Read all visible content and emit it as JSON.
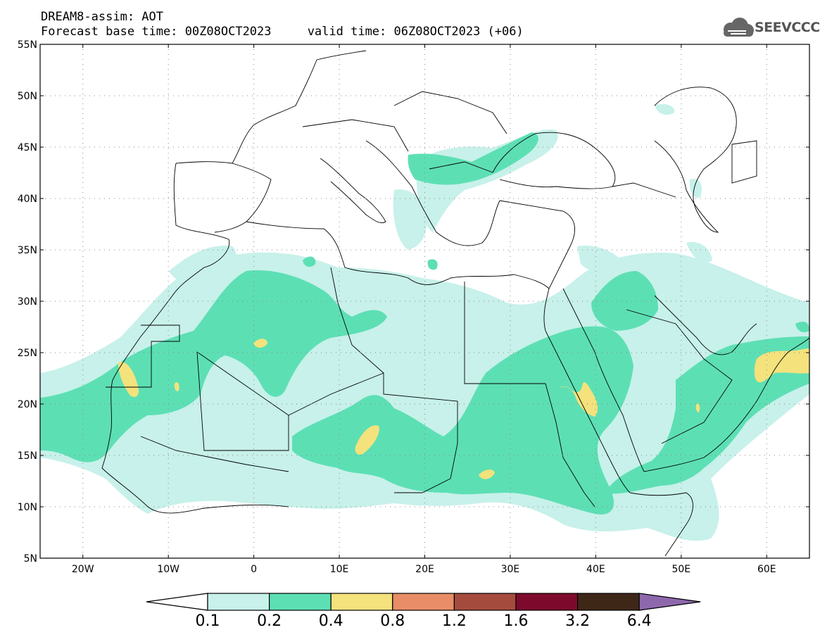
{
  "header": {
    "line1": "DREAM8-assim: AOT",
    "line2": "Forecast base time: 00Z08OCT2023     valid time: 06Z08OCT2023 (+06)"
  },
  "logo": {
    "text": "SEEVCCC",
    "icon": "cloud-icon"
  },
  "map": {
    "lon_range": [
      -25,
      65
    ],
    "lat_range": [
      5,
      55
    ],
    "lat_ticks": [
      {
        "value": 55,
        "label": "55N"
      },
      {
        "value": 50,
        "label": "50N"
      },
      {
        "value": 45,
        "label": "45N"
      },
      {
        "value": 40,
        "label": "40N"
      },
      {
        "value": 35,
        "label": "35N"
      },
      {
        "value": 30,
        "label": "30N"
      },
      {
        "value": 25,
        "label": "25N"
      },
      {
        "value": 20,
        "label": "20N"
      },
      {
        "value": 15,
        "label": "15N"
      },
      {
        "value": 10,
        "label": "10N"
      },
      {
        "value": 5,
        "label": "5N"
      }
    ],
    "lon_ticks": [
      {
        "value": -20,
        "label": "20W"
      },
      {
        "value": -10,
        "label": "10W"
      },
      {
        "value": 0,
        "label": "0"
      },
      {
        "value": 10,
        "label": "10E"
      },
      {
        "value": 20,
        "label": "20E"
      },
      {
        "value": 30,
        "label": "30E"
      },
      {
        "value": 40,
        "label": "40E"
      },
      {
        "value": 50,
        "label": "50E"
      },
      {
        "value": 60,
        "label": "60E"
      }
    ],
    "grid": "dotted"
  },
  "colorbar": {
    "labels": [
      "0.1",
      "0.2",
      "0.4",
      "0.8",
      "1.2",
      "1.6",
      "3.2",
      "6.4"
    ],
    "colors": [
      "#c7f1ea",
      "#5ddfb4",
      "#f4e27c",
      "#e88d67",
      "#a54b3e",
      "#7d0a2d",
      "#3f2718",
      "#8e68ac"
    ],
    "under_color": "#ffffff"
  }
}
